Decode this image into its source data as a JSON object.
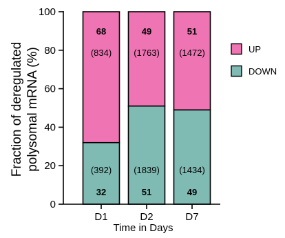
{
  "chart_data": {
    "type": "bar",
    "stacked": true,
    "categories": [
      "D1",
      "D2",
      "D7"
    ],
    "series": [
      {
        "name": "DOWN",
        "color": "#7fbab3",
        "values": [
          32,
          51,
          49
        ],
        "value_labels": [
          "32",
          "51",
          "49"
        ],
        "count_labels": [
          "(392)",
          "(1839)",
          "(1434)"
        ]
      },
      {
        "name": "UP",
        "color": "#ee74b3",
        "values": [
          68,
          49,
          51
        ],
        "value_labels": [
          "68",
          "49",
          "51"
        ],
        "count_labels": [
          "(834)",
          "(1763)",
          "(1472)"
        ]
      }
    ],
    "xlabel": "Time in Days",
    "ylabel_lines": [
      "Fraction of deregulated",
      "polysomal mRNA (%)"
    ],
    "ylim": [
      0,
      100
    ],
    "yticks": [
      0,
      20,
      40,
      60,
      80,
      100
    ],
    "ytick_labels": [
      "0",
      "20",
      "40",
      "60",
      "80",
      "100"
    ],
    "legend": {
      "position": "right",
      "entries": [
        "UP",
        "DOWN"
      ]
    },
    "grid": false
  }
}
